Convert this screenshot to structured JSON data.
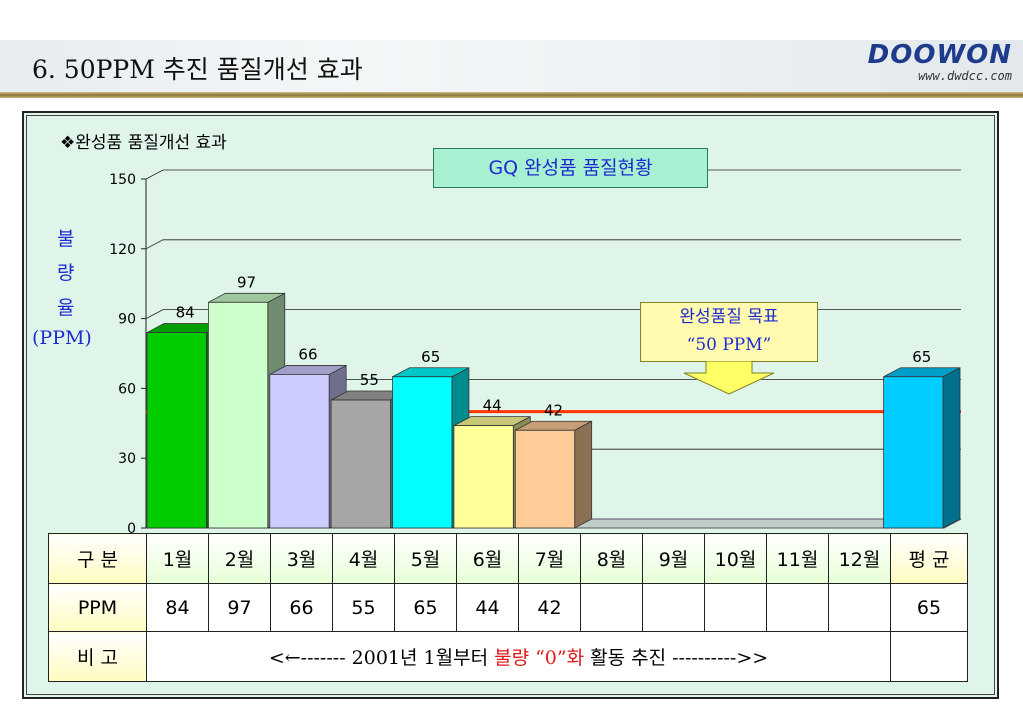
{
  "slide": {
    "title": "6. 50PPM 추진 품질개선 효과",
    "logo_main": "DOOWON",
    "logo_url": "www.dwdcc.com"
  },
  "bullet": "❖완성품 품질개선 효과",
  "ylabel_lines": [
    "불",
    "량",
    "율",
    "(PPM)"
  ],
  "target_lines": [
    "완성품질 목표",
    "“50 PPM”"
  ],
  "colors": {
    "target_line": "#ff3300",
    "bars": [
      "#00cc00",
      "#ccffcc",
      "#ccccff",
      "#a6a6a6",
      "#00ffff",
      "#ffff99",
      "#ffcc99",
      "#00ccff"
    ],
    "plot_bg": "#dff5ea"
  },
  "chart_data": {
    "type": "bar",
    "title": "GQ 완성품 품질현황",
    "categories": [
      "1월",
      "2월",
      "3월",
      "4월",
      "5월",
      "6월",
      "7월",
      "8월",
      "9월",
      "10월",
      "11월",
      "12월",
      "평 균"
    ],
    "values": [
      84,
      97,
      66,
      55,
      65,
      44,
      42,
      null,
      null,
      null,
      null,
      null,
      65
    ],
    "ylim": [
      0,
      150
    ],
    "yticks": [
      0,
      30,
      60,
      90,
      120,
      150
    ],
    "target": 50,
    "grid": true
  },
  "table": {
    "row_labels": [
      "구 분",
      "PPM",
      "비 고"
    ],
    "ppm": [
      "84",
      "97",
      "66",
      "55",
      "65",
      "44",
      "42",
      "",
      "",
      "",
      "",
      "",
      "65"
    ],
    "note": {
      "pre": "<←------- 2001년 1월부터 ",
      "red1": "불량 “0”화",
      "post": " 활동 추진 ---------->>"
    }
  }
}
